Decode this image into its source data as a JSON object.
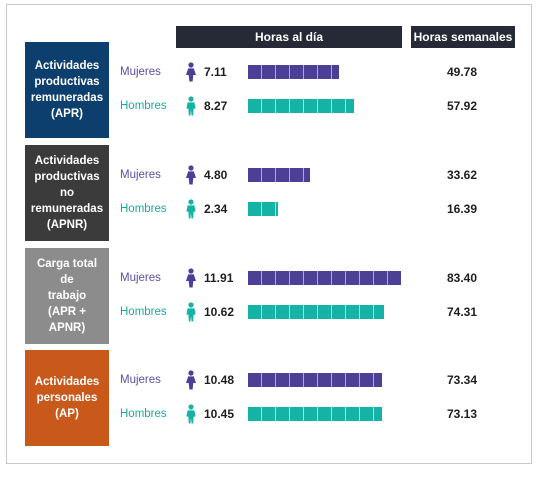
{
  "colors": {
    "women": "#4b3f96",
    "men": "#14b3a5"
  },
  "headers": {
    "hours_per_day": "Horas al día",
    "hours_per_week": "Horas semanales"
  },
  "chart_data": {
    "type": "bar",
    "orientation": "horizontal",
    "max_value": 12,
    "groups": [
      {
        "label": "Actividades\nproductivas\nremuneradas\n(APR)",
        "color": "#0d3f6e",
        "rows": [
          {
            "sex": "Mujeres",
            "icon": "woman-icon",
            "hours_day": "7.11",
            "value": 7.11,
            "hours_week": "49.78"
          },
          {
            "sex": "Hombres",
            "icon": "man-icon",
            "hours_day": "8.27",
            "value": 8.27,
            "hours_week": "57.92"
          }
        ]
      },
      {
        "label": "Actividades\nproductivas no\nremuneradas\n(APNR)",
        "color": "#3b3b3b",
        "rows": [
          {
            "sex": "Mujeres",
            "icon": "woman-icon",
            "hours_day": "4.80",
            "value": 4.8,
            "hours_week": "33.62"
          },
          {
            "sex": "Hombres",
            "icon": "man-icon",
            "hours_day": "2.34",
            "value": 2.34,
            "hours_week": "16.39"
          }
        ]
      },
      {
        "label": "Carga total de\ntrabajo\n(APR + APNR)",
        "color": "#8c8c8c",
        "rows": [
          {
            "sex": "Mujeres",
            "icon": "woman-icon",
            "hours_day": "11.91",
            "value": 11.91,
            "hours_week": "83.40"
          },
          {
            "sex": "Hombres",
            "icon": "man-icon",
            "hours_day": "10.62",
            "value": 10.62,
            "hours_week": "74.31"
          }
        ]
      },
      {
        "label": "Actividades\npersonales\n(AP)",
        "color": "#c8591b",
        "rows": [
          {
            "sex": "Mujeres",
            "icon": "woman-icon",
            "hours_day": "10.48",
            "value": 10.48,
            "hours_week": "73.34"
          },
          {
            "sex": "Hombres",
            "icon": "man-icon",
            "hours_day": "10.45",
            "value": 10.45,
            "hours_week": "73.13"
          }
        ]
      }
    ]
  }
}
